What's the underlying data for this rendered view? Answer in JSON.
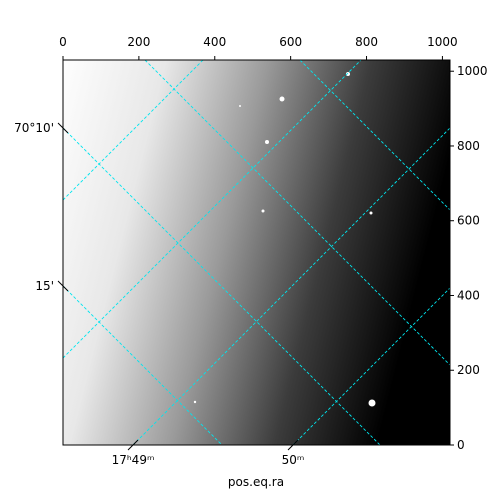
{
  "chart_data": {
    "type": "image",
    "xlim": [
      0,
      1020
    ],
    "xticks": [
      0,
      200,
      400,
      600,
      800,
      1000
    ],
    "ylim": [
      0,
      1030
    ],
    "yticks": [
      0,
      200,
      400,
      600,
      800,
      1000
    ],
    "xlabel": "pos.eq.ra",
    "ra_labels": [
      "17ʰ49ᵐ",
      "50ᵐ"
    ],
    "dec_labels": [
      "70°10'",
      "15'"
    ],
    "grid_color": "#00e5ee"
  }
}
